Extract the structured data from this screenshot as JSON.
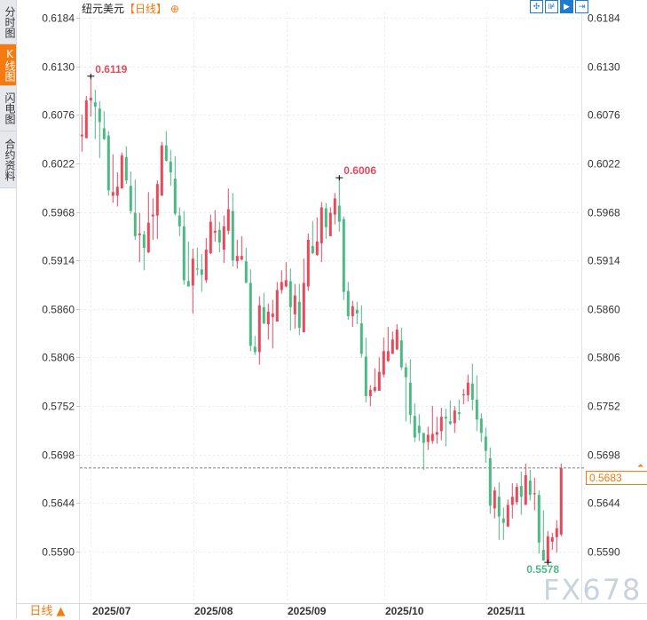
{
  "sidebar": {
    "tabs": [
      {
        "label": "分时图",
        "active": false
      },
      {
        "label": "K线图",
        "active": true
      },
      {
        "label": "闪电图",
        "active": false
      },
      {
        "label": "合约资料",
        "active": false
      }
    ]
  },
  "header": {
    "title": "纽元美元",
    "period": "【日线】",
    "add_icon": "⊕"
  },
  "toolbar": {
    "icons": [
      "crosshair-icon",
      "zoom-reset-icon",
      "play-forward-icon",
      "jump-to-end-icon"
    ]
  },
  "bottom": {
    "period_label": "日线 ▲"
  },
  "watermark": "FX678",
  "colors": {
    "up": "#e8485a",
    "down": "#4cb985",
    "accent": "#f57a10",
    "toolbar": "#1e7bd0"
  },
  "chart_data": {
    "type": "candlestick",
    "y_ticks": [
      "0.6184",
      "0.6130",
      "0.6076",
      "0.6022",
      "0.5968",
      "0.5914",
      "0.5860",
      "0.5806",
      "0.5752",
      "0.5698",
      "0.5644",
      "0.5590"
    ],
    "ylim": [
      0.559,
      0.6184
    ],
    "x_ticks": [
      "2025/07",
      "2025/08",
      "2025/09",
      "2025/10",
      "2025/11"
    ],
    "grid": true,
    "last_price": "0.5683",
    "annotations": [
      {
        "text": "0.6119",
        "index": 2,
        "kind": "high"
      },
      {
        "text": "0.6006",
        "index": 58,
        "kind": "high"
      },
      {
        "text": "0.5578",
        "index": 105,
        "kind": "low"
      }
    ],
    "ohlc": [
      [
        0.6052,
        0.6076,
        0.6035,
        0.6054
      ],
      [
        0.605,
        0.6097,
        0.605,
        0.6092
      ],
      [
        0.6092,
        0.6119,
        0.6074,
        0.6095
      ],
      [
        0.609,
        0.6104,
        0.6049,
        0.6085
      ],
      [
        0.6083,
        0.6091,
        0.6028,
        0.6068
      ],
      [
        0.6061,
        0.608,
        0.6048,
        0.6049
      ],
      [
        0.6053,
        0.6058,
        0.5986,
        0.5992
      ],
      [
        0.5986,
        0.6032,
        0.5978,
        0.599
      ],
      [
        0.5986,
        0.6012,
        0.5974,
        0.5996
      ],
      [
        0.5994,
        0.6034,
        0.5994,
        0.6031
      ],
      [
        0.6029,
        0.6041,
        0.5999,
        0.6003
      ],
      [
        0.5997,
        0.6013,
        0.5966,
        0.5969
      ],
      [
        0.5967,
        0.6004,
        0.5937,
        0.5941
      ],
      [
        0.5942,
        0.5967,
        0.5912,
        0.5944
      ],
      [
        0.5943,
        0.5947,
        0.5903,
        0.5928
      ],
      [
        0.5923,
        0.599,
        0.5922,
        0.5956
      ],
      [
        0.5963,
        0.5983,
        0.5937,
        0.5965
      ],
      [
        0.5964,
        0.6003,
        0.5938,
        0.5999
      ],
      [
        0.5986,
        0.6046,
        0.5986,
        0.6042
      ],
      [
        0.6042,
        0.6058,
        0.6024,
        0.6025
      ],
      [
        0.6024,
        0.6037,
        0.5997,
        0.6012
      ],
      [
        0.6005,
        0.603,
        0.5964,
        0.5966
      ],
      [
        0.5964,
        0.5973,
        0.5941,
        0.5952
      ],
      [
        0.5952,
        0.5969,
        0.5887,
        0.5892
      ],
      [
        0.5891,
        0.5935,
        0.5885,
        0.5885
      ],
      [
        0.5886,
        0.5927,
        0.5855,
        0.5916
      ],
      [
        0.5905,
        0.5928,
        0.5897,
        0.5904
      ],
      [
        0.5904,
        0.5921,
        0.5879,
        0.5898
      ],
      [
        0.5892,
        0.5939,
        0.5889,
        0.5926
      ],
      [
        0.5922,
        0.5965,
        0.5921,
        0.5957
      ],
      [
        0.5945,
        0.597,
        0.5935,
        0.5947
      ],
      [
        0.5948,
        0.5957,
        0.5923,
        0.5934
      ],
      [
        0.5926,
        0.5964,
        0.5911,
        0.5952
      ],
      [
        0.5947,
        0.5994,
        0.5943,
        0.5971
      ],
      [
        0.5969,
        0.5989,
        0.5907,
        0.5914
      ],
      [
        0.5913,
        0.5937,
        0.5905,
        0.5919
      ],
      [
        0.5915,
        0.5941,
        0.5914,
        0.5919
      ],
      [
        0.5913,
        0.5928,
        0.5889,
        0.5889
      ],
      [
        0.5889,
        0.5904,
        0.5813,
        0.5819
      ],
      [
        0.5818,
        0.583,
        0.5809,
        0.5812
      ],
      [
        0.5812,
        0.5874,
        0.5798,
        0.5864
      ],
      [
        0.5862,
        0.5878,
        0.5843,
        0.5844
      ],
      [
        0.5843,
        0.5866,
        0.5826,
        0.5857
      ],
      [
        0.5851,
        0.587,
        0.5816,
        0.5855
      ],
      [
        0.5846,
        0.589,
        0.5846,
        0.5881
      ],
      [
        0.5881,
        0.5903,
        0.5877,
        0.589
      ],
      [
        0.5885,
        0.5912,
        0.5884,
        0.5892
      ],
      [
        0.5891,
        0.5905,
        0.5836,
        0.5862
      ],
      [
        0.5854,
        0.5888,
        0.5838,
        0.5875
      ],
      [
        0.5868,
        0.5888,
        0.5831,
        0.5839
      ],
      [
        0.5834,
        0.5916,
        0.5834,
        0.5889
      ],
      [
        0.5885,
        0.5944,
        0.588,
        0.5937
      ],
      [
        0.593,
        0.5958,
        0.5921,
        0.5922
      ],
      [
        0.592,
        0.5962,
        0.5919,
        0.5935
      ],
      [
        0.5933,
        0.5979,
        0.5912,
        0.5973
      ],
      [
        0.5972,
        0.5978,
        0.5938,
        0.5951
      ],
      [
        0.5941,
        0.5973,
        0.5941,
        0.5967
      ],
      [
        0.5965,
        0.5989,
        0.5954,
        0.5983
      ],
      [
        0.5975,
        0.6006,
        0.5946,
        0.5957
      ],
      [
        0.596,
        0.5963,
        0.587,
        0.5879
      ],
      [
        0.588,
        0.589,
        0.5848,
        0.5852
      ],
      [
        0.5852,
        0.5869,
        0.584,
        0.5863
      ],
      [
        0.5859,
        0.5868,
        0.5843,
        0.5855
      ],
      [
        0.5844,
        0.5864,
        0.5806,
        0.581
      ],
      [
        0.5807,
        0.5828,
        0.5756,
        0.5763
      ],
      [
        0.5763,
        0.5775,
        0.5752,
        0.577
      ],
      [
        0.5769,
        0.5794,
        0.5767,
        0.5773
      ],
      [
        0.5769,
        0.5806,
        0.5769,
        0.579
      ],
      [
        0.5787,
        0.5828,
        0.5784,
        0.5813
      ],
      [
        0.5802,
        0.584,
        0.5801,
        0.5813
      ],
      [
        0.581,
        0.5835,
        0.581,
        0.5826
      ],
      [
        0.5815,
        0.5843,
        0.5814,
        0.5837
      ],
      [
        0.5825,
        0.5839,
        0.5792,
        0.5795
      ],
      [
        0.5795,
        0.58,
        0.5735,
        0.5784
      ],
      [
        0.5778,
        0.5804,
        0.5732,
        0.5742
      ],
      [
        0.5741,
        0.5755,
        0.5712,
        0.5717
      ],
      [
        0.573,
        0.5743,
        0.5713,
        0.5722
      ],
      [
        0.5722,
        0.5722,
        0.5681,
        0.5711
      ],
      [
        0.5712,
        0.5729,
        0.5703,
        0.572
      ],
      [
        0.5713,
        0.5752,
        0.571,
        0.5721
      ],
      [
        0.572,
        0.574,
        0.571,
        0.5723
      ],
      [
        0.5724,
        0.575,
        0.5714,
        0.574
      ],
      [
        0.574,
        0.5749,
        0.5707,
        0.5738
      ],
      [
        0.5735,
        0.5758,
        0.5731,
        0.5732
      ],
      [
        0.5733,
        0.5752,
        0.5722,
        0.5747
      ],
      [
        0.5745,
        0.5759,
        0.5736,
        0.5743
      ],
      [
        0.5764,
        0.5771,
        0.5754,
        0.5765
      ],
      [
        0.5764,
        0.5787,
        0.5757,
        0.5778
      ],
      [
        0.5777,
        0.5799,
        0.5747,
        0.5759
      ],
      [
        0.5759,
        0.5786,
        0.5724,
        0.5737
      ],
      [
        0.5738,
        0.5744,
        0.5712,
        0.5722
      ],
      [
        0.5718,
        0.5728,
        0.5689,
        0.5702
      ],
      [
        0.5694,
        0.5706,
        0.5632,
        0.5641
      ],
      [
        0.5638,
        0.5662,
        0.5627,
        0.5658
      ],
      [
        0.5651,
        0.5667,
        0.5603,
        0.5629
      ],
      [
        0.5627,
        0.5639,
        0.5603,
        0.5622
      ],
      [
        0.5618,
        0.5648,
        0.5617,
        0.5642
      ],
      [
        0.5642,
        0.5666,
        0.5627,
        0.5651
      ],
      [
        0.5645,
        0.5666,
        0.5642,
        0.5662
      ],
      [
        0.5663,
        0.5679,
        0.5631,
        0.5651
      ],
      [
        0.5642,
        0.5688,
        0.5642,
        0.5675
      ],
      [
        0.5669,
        0.5681,
        0.5647,
        0.5653
      ],
      [
        0.5654,
        0.5672,
        0.5636,
        0.5655
      ],
      [
        0.5653,
        0.5658,
        0.5588,
        0.56
      ],
      [
        0.5592,
        0.5636,
        0.558,
        0.558
      ],
      [
        0.5579,
        0.5613,
        0.5578,
        0.5607
      ],
      [
        0.5601,
        0.5611,
        0.5592,
        0.5606
      ],
      [
        0.5606,
        0.5625,
        0.5589,
        0.5616
      ],
      [
        0.5609,
        0.5688,
        0.5607,
        0.5683
      ]
    ]
  }
}
